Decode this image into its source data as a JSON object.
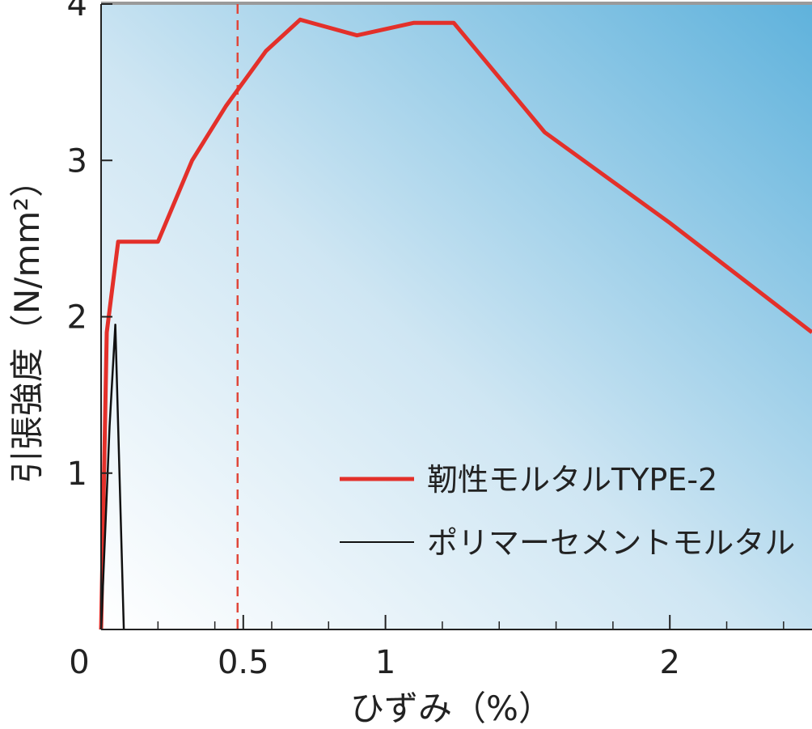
{
  "chart_data": {
    "type": "line",
    "xlabel": "ひずみ（%）",
    "ylabel": "引張強度（N/mm²）",
    "xlim": [
      0,
      2.5
    ],
    "ylim": [
      0,
      4
    ],
    "x_ticks": [
      0,
      0.5,
      1,
      2
    ],
    "x_tick_labels": [
      "0",
      "0.5",
      "1",
      "2"
    ],
    "x_minor_ticks": [
      0.2,
      0.4,
      0.6,
      0.8,
      1.2,
      1.4,
      1.6,
      1.8,
      2.2,
      2.4
    ],
    "y_ticks": [
      1,
      2,
      3,
      4
    ],
    "y_tick_labels": [
      "1",
      "2",
      "3",
      "4"
    ],
    "reference_line": {
      "x": 0.48,
      "style": "dashed",
      "color": "#e0473a"
    },
    "legend_position": "bottom-right",
    "grid": false,
    "series": [
      {
        "name": "靭性モルタルTYPE-2",
        "color": "#e3302a",
        "x": [
          0,
          0.02,
          0.06,
          0.2,
          0.32,
          0.44,
          0.58,
          0.7,
          0.9,
          1.1,
          1.24,
          1.56,
          2.0,
          2.5
        ],
        "y": [
          0,
          1.9,
          2.48,
          2.48,
          3.0,
          3.35,
          3.7,
          3.9,
          3.8,
          3.88,
          3.88,
          3.18,
          2.6,
          1.9
        ]
      },
      {
        "name": "ポリマーセメントモルタル",
        "color": "#111111",
        "x": [
          0,
          0.03,
          0.05,
          0.08
        ],
        "y": [
          0,
          1.3,
          1.95,
          0
        ]
      }
    ]
  }
}
